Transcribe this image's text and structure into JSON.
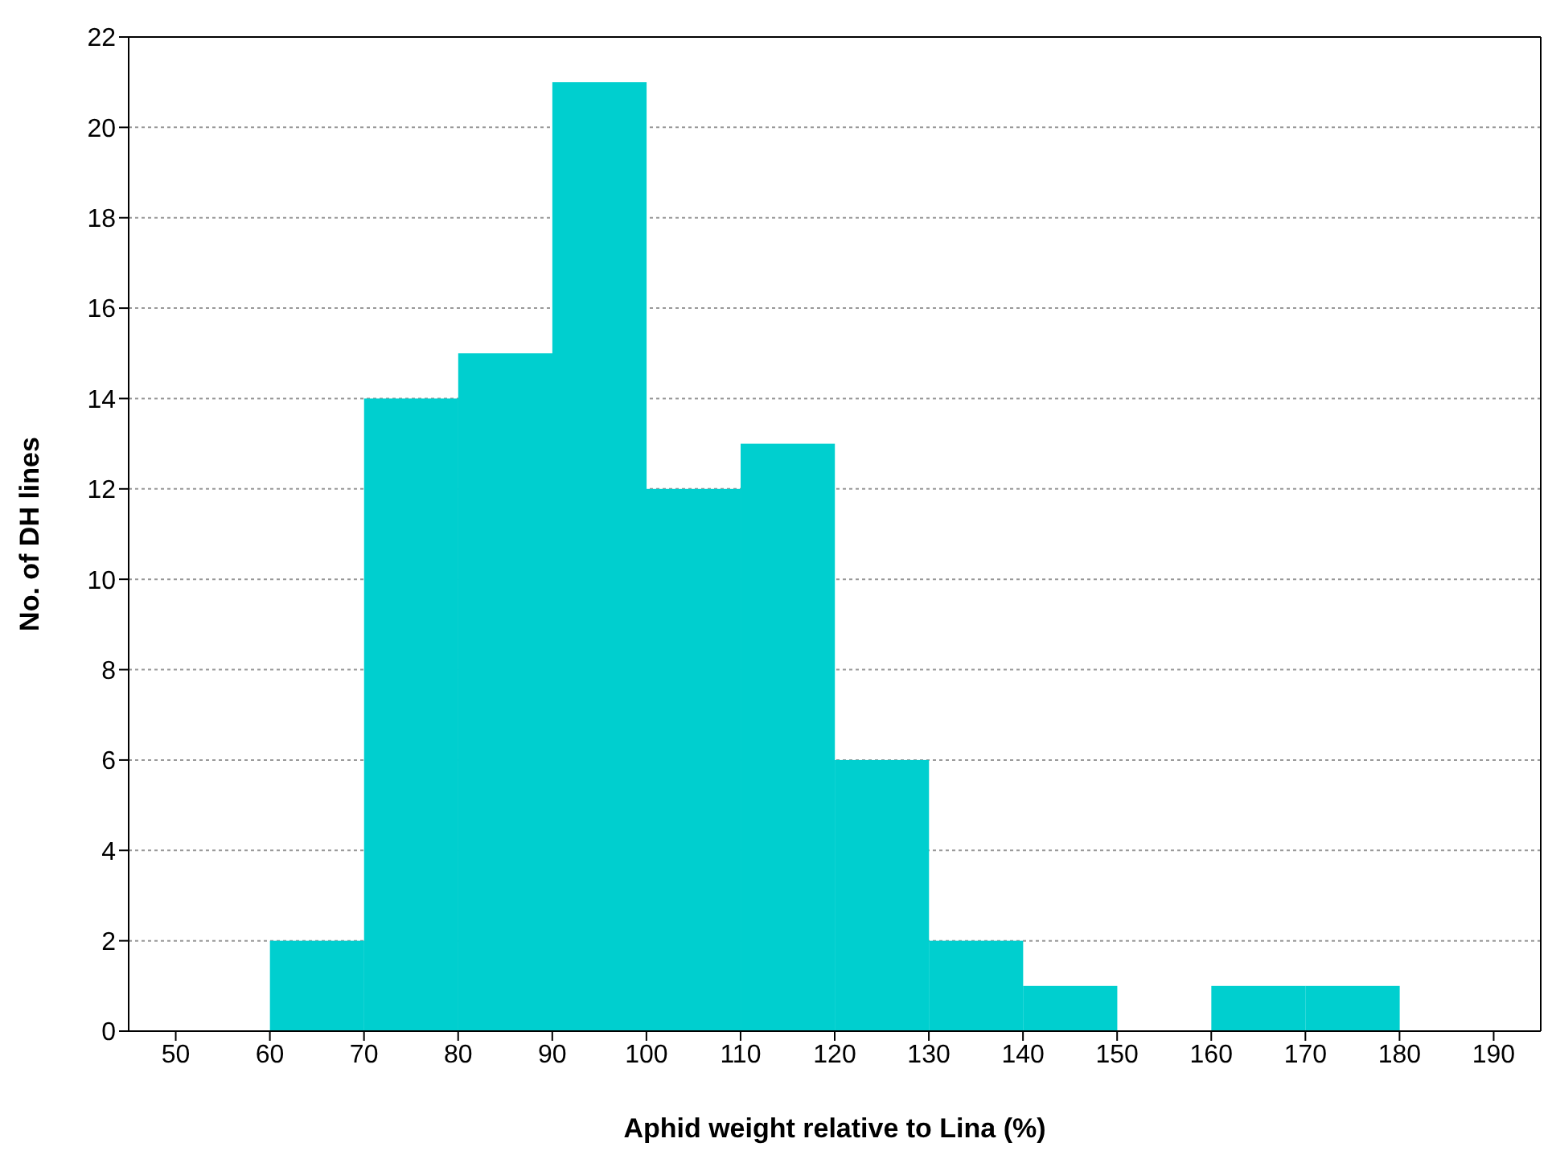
{
  "chart_data": {
    "type": "histogram",
    "xlabel": "Aphid weight relative to Lina (%)",
    "ylabel": "No. of DH lines",
    "bins": [
      60,
      70,
      80,
      90,
      100,
      110,
      120,
      130,
      140,
      150,
      160,
      170,
      180
    ],
    "values": [
      2,
      14,
      15,
      21,
      12,
      13,
      6,
      2,
      1,
      0,
      1,
      1
    ],
    "color": "#00cfcf",
    "xlim": [
      45,
      195
    ],
    "xticks": [
      50,
      60,
      70,
      80,
      90,
      100,
      110,
      120,
      130,
      140,
      150,
      160,
      170,
      180,
      190
    ],
    "ylim": [
      0,
      22
    ],
    "yticks": [
      0,
      2,
      4,
      6,
      8,
      10,
      12,
      14,
      16,
      18,
      20,
      22
    ],
    "grid": "y"
  }
}
